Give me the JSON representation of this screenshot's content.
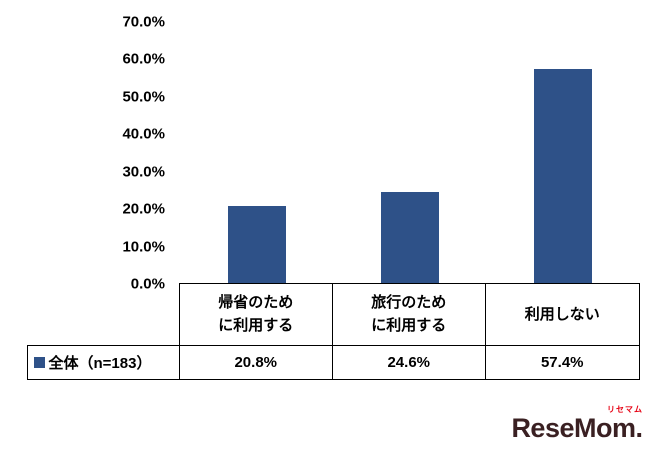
{
  "chart_data": {
    "type": "bar",
    "title": "",
    "categories": [
      "帰省のため\nに利用する",
      "旅行のため\nに利用する",
      "利用しない"
    ],
    "values": [
      20.8,
      24.6,
      57.4
    ],
    "value_labels": [
      "20.8%",
      "24.6%",
      "57.4%"
    ],
    "series": [
      {
        "name": "全体（n=183）",
        "values": [
          20.8,
          24.6,
          57.4
        ]
      }
    ],
    "xlabel": "",
    "ylabel": "",
    "ylim": [
      0,
      70
    ],
    "ytick_labels": [
      "70.0%",
      "60.0%",
      "50.0%",
      "40.0%",
      "30.0%",
      "20.0%",
      "10.0%",
      "0.0%"
    ],
    "grid": false,
    "legend_position": "bottom-table-left",
    "bar_color": "#2E5188"
  },
  "table": {
    "legend_label": "全体（n=183）",
    "values": [
      "20.8%",
      "24.6%",
      "57.4%"
    ]
  },
  "logo": {
    "text": "ReseMom",
    "dot": ".",
    "ruby": "リセマム"
  }
}
